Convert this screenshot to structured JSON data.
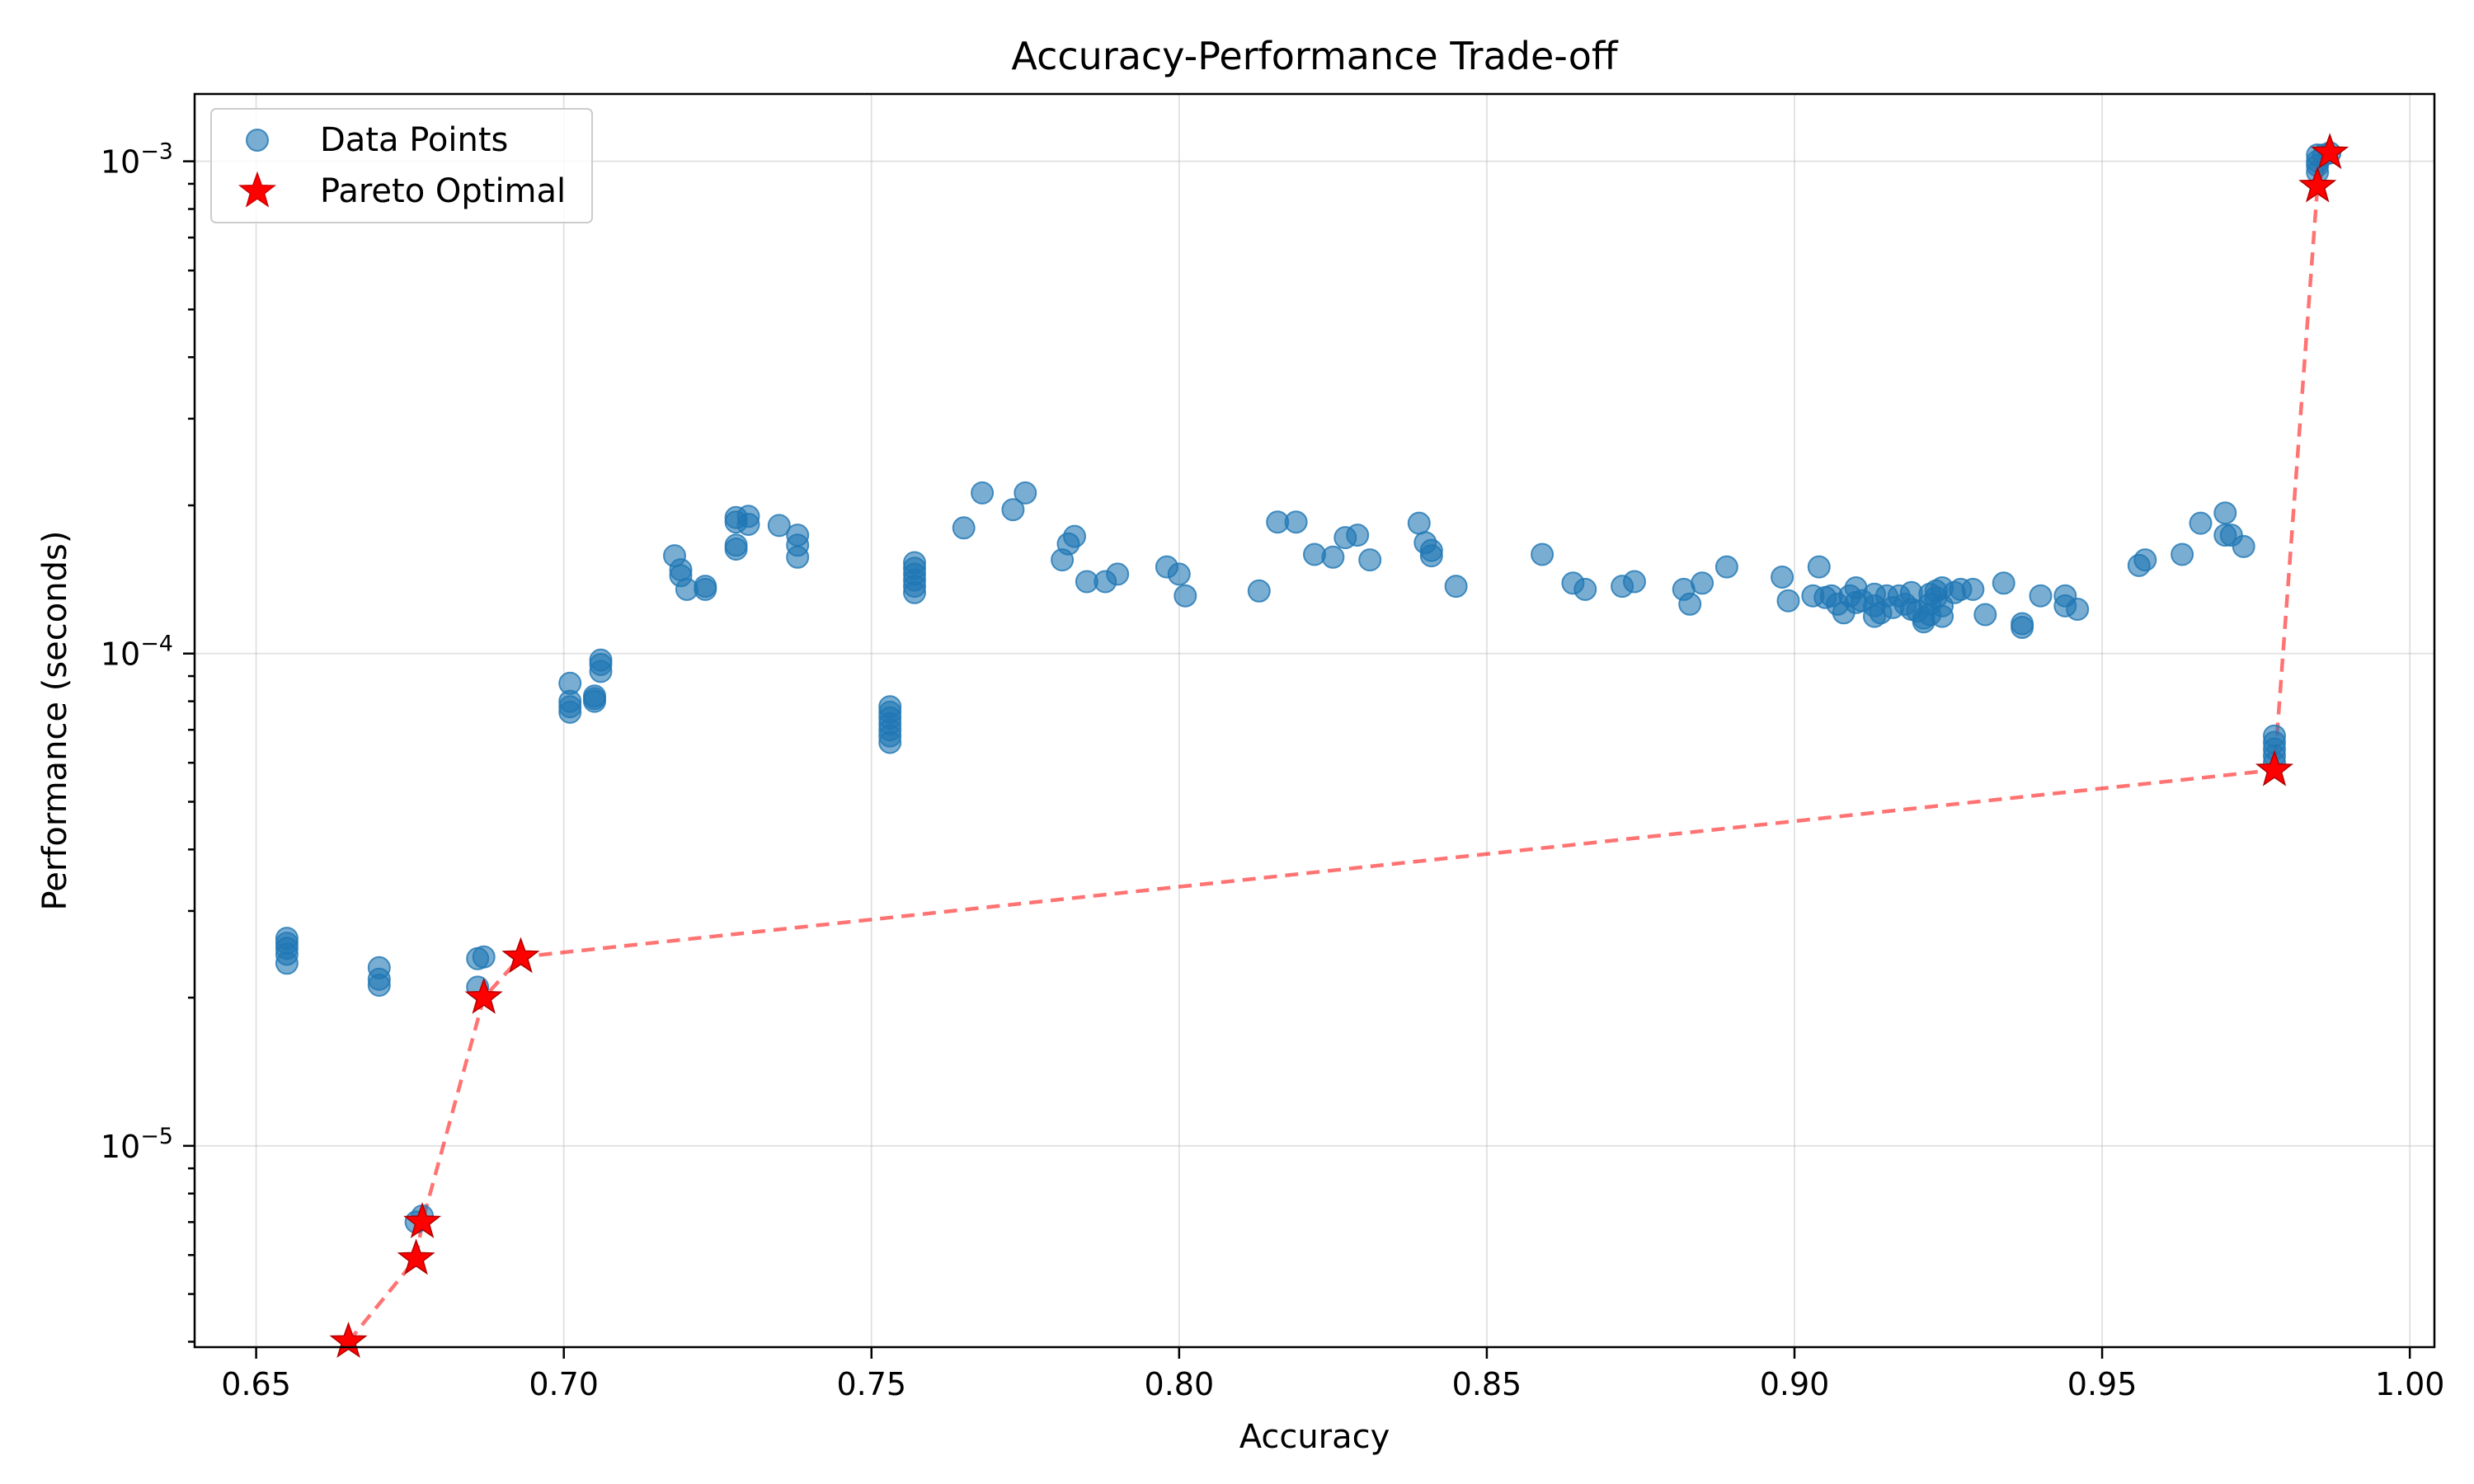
{
  "chart_data": {
    "type": "scatter",
    "title": "Accuracy-Performance Trade-off",
    "xlabel": "Accuracy",
    "ylabel": "Performance (seconds)",
    "xlim": [
      0.64,
      1.004
    ],
    "ylim": [
      3.9e-06,
      0.00137
    ],
    "yscale": "log",
    "grid": true,
    "legend_position": "top-left",
    "x_ticks": [
      0.65,
      0.7,
      0.75,
      0.8,
      0.85,
      0.9,
      0.95,
      1.0
    ],
    "x_tick_labels": [
      "0.65",
      "0.70",
      "0.75",
      "0.80",
      "0.85",
      "0.90",
      "0.95",
      "1.00"
    ],
    "y_major_ticks": [
      1e-05,
      0.0001,
      0.001
    ],
    "y_tick_labels": [
      {
        "base": "10",
        "exp": "−5"
      },
      {
        "base": "10",
        "exp": "−4"
      },
      {
        "base": "10",
        "exp": "−3"
      }
    ],
    "series": [
      {
        "name": "Data Points",
        "kind": "scatter",
        "color": "#1f77b4",
        "points": [
          [
            0.655,
            2.35e-05
          ],
          [
            0.655,
            2.45e-05
          ],
          [
            0.655,
            2.52e-05
          ],
          [
            0.655,
            2.58e-05
          ],
          [
            0.655,
            2.64e-05
          ],
          [
            0.67,
            2.12e-05
          ],
          [
            0.67,
            2.18e-05
          ],
          [
            0.67,
            2.3e-05
          ],
          [
            0.676,
            7e-06
          ],
          [
            0.677,
            7.2e-06
          ],
          [
            0.686,
            2.1e-05
          ],
          [
            0.686,
            2.4e-05
          ],
          [
            0.687,
            2.42e-05
          ],
          [
            0.701,
            7.6e-05
          ],
          [
            0.701,
            7.8e-05
          ],
          [
            0.701,
            8e-05
          ],
          [
            0.701,
            8.7e-05
          ],
          [
            0.705,
            8e-05
          ],
          [
            0.705,
            8.1e-05
          ],
          [
            0.705,
            8.2e-05
          ],
          [
            0.706,
            9.2e-05
          ],
          [
            0.706,
            9.5e-05
          ],
          [
            0.706,
            9.7e-05
          ],
          [
            0.718,
            0.000158
          ],
          [
            0.719,
            0.000148
          ],
          [
            0.719,
            0.000144
          ],
          [
            0.72,
            0.000135
          ],
          [
            0.723,
            0.000137
          ],
          [
            0.723,
            0.000135
          ],
          [
            0.728,
            0.000185
          ],
          [
            0.728,
            0.000189
          ],
          [
            0.728,
            0.000166
          ],
          [
            0.728,
            0.000163
          ],
          [
            0.73,
            0.000183
          ],
          [
            0.73,
            0.00019
          ],
          [
            0.735,
            0.000182
          ],
          [
            0.738,
            0.000174
          ],
          [
            0.738,
            0.000166
          ],
          [
            0.738,
            0.000157
          ],
          [
            0.753,
            6.6e-05
          ],
          [
            0.753,
            6.8e-05
          ],
          [
            0.753,
            7e-05
          ],
          [
            0.753,
            7.2e-05
          ],
          [
            0.753,
            7.4e-05
          ],
          [
            0.753,
            7.6e-05
          ],
          [
            0.753,
            7.8e-05
          ],
          [
            0.757,
            0.000133
          ],
          [
            0.757,
            0.000137
          ],
          [
            0.757,
            0.000141
          ],
          [
            0.757,
            0.000145
          ],
          [
            0.757,
            0.000149
          ],
          [
            0.757,
            0.000153
          ],
          [
            0.765,
            0.00018
          ],
          [
            0.768,
            0.000212
          ],
          [
            0.773,
            0.000196
          ],
          [
            0.775,
            0.000212
          ],
          [
            0.781,
            0.000155
          ],
          [
            0.782,
            0.000167
          ],
          [
            0.783,
            0.000173
          ],
          [
            0.785,
            0.00014
          ],
          [
            0.788,
            0.00014
          ],
          [
            0.79,
            0.000145
          ],
          [
            0.798,
            0.00015
          ],
          [
            0.8,
            0.000145
          ],
          [
            0.801,
            0.000131
          ],
          [
            0.813,
            0.000134
          ],
          [
            0.816,
            0.000185
          ],
          [
            0.819,
            0.000185
          ],
          [
            0.822,
            0.000159
          ],
          [
            0.825,
            0.000157
          ],
          [
            0.827,
            0.000172
          ],
          [
            0.829,
            0.000174
          ],
          [
            0.831,
            0.000155
          ],
          [
            0.839,
            0.000184
          ],
          [
            0.84,
            0.000168
          ],
          [
            0.841,
            0.000158
          ],
          [
            0.841,
            0.000162
          ],
          [
            0.845,
            0.000137
          ],
          [
            0.859,
            0.000159
          ],
          [
            0.864,
            0.000139
          ],
          [
            0.866,
            0.000135
          ],
          [
            0.872,
            0.000137
          ],
          [
            0.874,
            0.00014
          ],
          [
            0.882,
            0.000135
          ],
          [
            0.883,
            0.000126
          ],
          [
            0.885,
            0.000139
          ],
          [
            0.889,
            0.00015
          ],
          [
            0.898,
            0.000143
          ],
          [
            0.899,
            0.000128
          ],
          [
            0.903,
            0.000131
          ],
          [
            0.904,
            0.00015
          ],
          [
            0.905,
            0.00013
          ],
          [
            0.906,
            0.000131
          ],
          [
            0.907,
            0.000126
          ],
          [
            0.908,
            0.000121
          ],
          [
            0.909,
            0.000131
          ],
          [
            0.91,
            0.000127
          ],
          [
            0.91,
            0.000136
          ],
          [
            0.911,
            0.000128
          ],
          [
            0.913,
            0.000119
          ],
          [
            0.913,
            0.000125
          ],
          [
            0.913,
            0.000132
          ],
          [
            0.914,
            0.000121
          ],
          [
            0.915,
            0.000131
          ],
          [
            0.916,
            0.000124
          ],
          [
            0.917,
            0.000131
          ],
          [
            0.918,
            0.000126
          ],
          [
            0.919,
            0.000123
          ],
          [
            0.919,
            0.000133
          ],
          [
            0.92,
            0.000122
          ],
          [
            0.921,
            0.000116
          ],
          [
            0.921,
            0.000118
          ],
          [
            0.922,
            0.00012
          ],
          [
            0.922,
            0.000126
          ],
          [
            0.922,
            0.000132
          ],
          [
            0.923,
            0.000134
          ],
          [
            0.923,
            0.00013
          ],
          [
            0.924,
            0.000125
          ],
          [
            0.924,
            0.000119
          ],
          [
            0.924,
            0.000136
          ],
          [
            0.926,
            0.000133
          ],
          [
            0.927,
            0.000135
          ],
          [
            0.929,
            0.000135
          ],
          [
            0.931,
            0.00012
          ],
          [
            0.934,
            0.000139
          ],
          [
            0.937,
            0.000113
          ],
          [
            0.937,
            0.000115
          ],
          [
            0.94,
            0.000131
          ],
          [
            0.944,
            0.000131
          ],
          [
            0.944,
            0.000125
          ],
          [
            0.946,
            0.000123
          ],
          [
            0.956,
            0.000151
          ],
          [
            0.957,
            0.000155
          ],
          [
            0.963,
            0.000159
          ],
          [
            0.966,
            0.000184
          ],
          [
            0.97,
            0.000193
          ],
          [
            0.97,
            0.000174
          ],
          [
            0.971,
            0.000174
          ],
          [
            0.973,
            0.000165
          ],
          [
            0.978,
            6e-05
          ],
          [
            0.978,
            6.2e-05
          ],
          [
            0.978,
            6.4e-05
          ],
          [
            0.978,
            6.6e-05
          ],
          [
            0.978,
            6.8e-05
          ],
          [
            0.985,
            0.00095
          ],
          [
            0.985,
            0.00098
          ],
          [
            0.985,
            0.001
          ],
          [
            0.985,
            0.00103
          ],
          [
            0.986,
            0.00103
          ],
          [
            0.987,
            0.00104
          ]
        ]
      },
      {
        "name": "Pareto Optimal",
        "kind": "star-line",
        "color": "#ff0000",
        "points": [
          [
            0.665,
            4e-06
          ],
          [
            0.676,
            5.9e-06
          ],
          [
            0.677,
            7e-06
          ],
          [
            0.687,
            2e-05
          ],
          [
            0.693,
            2.42e-05
          ],
          [
            0.978,
            5.8e-05
          ],
          [
            0.985,
            0.00089
          ],
          [
            0.987,
            0.00104
          ]
        ]
      }
    ]
  }
}
